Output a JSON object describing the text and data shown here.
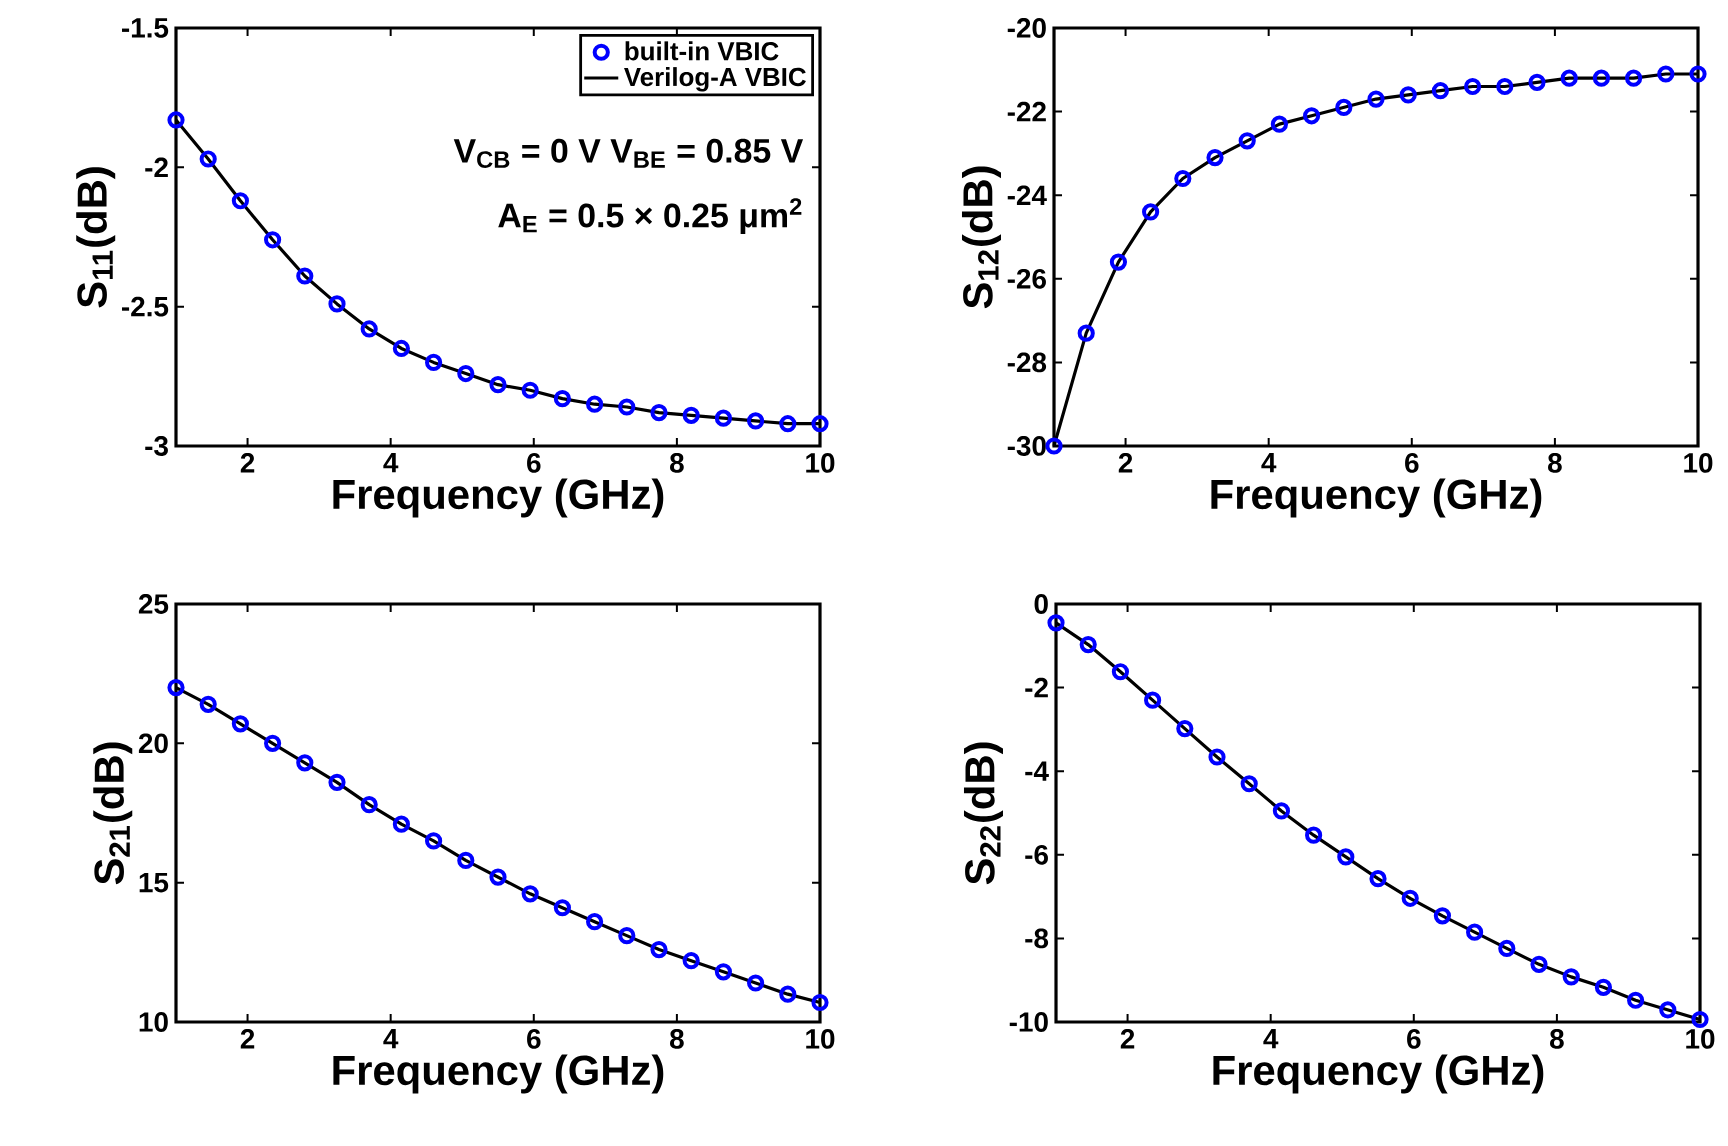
{
  "chart_data": [
    {
      "type": "line",
      "xlabel": "Frequency (GHz)",
      "ylabel": "S$_{11}$(dB)",
      "x": [
        1,
        1.45,
        1.9,
        2.35,
        2.8,
        3.25,
        3.7,
        4.15,
        4.6,
        5.05,
        5.5,
        5.95,
        6.4,
        6.85,
        7.3,
        7.75,
        8.2,
        8.65,
        9.1,
        9.55,
        10
      ],
      "xlim": [
        1,
        10
      ],
      "xticks": [
        2,
        4,
        6,
        8,
        10
      ],
      "ylim": [
        -3,
        -1.5
      ],
      "yticks": [
        -3,
        -2.5,
        -2,
        -1.5
      ],
      "legend": "top right",
      "grid": false,
      "annotations": [
        "V$_{CB}$ = 0 V  V$_{BE}$ = 0.85 V",
        "A$_{E}$ = 0.5 × 0.25 μm$^{2}$"
      ],
      "series": [
        {
          "name": "built-in VBIC",
          "type": "scatter",
          "marker": "circle",
          "color": "#0000ff",
          "values": [
            -1.83,
            -1.97,
            -2.12,
            -2.26,
            -2.39,
            -2.49,
            -2.58,
            -2.65,
            -2.7,
            -2.74,
            -2.78,
            -2.8,
            -2.83,
            -2.85,
            -2.86,
            -2.88,
            -2.89,
            -2.9,
            -2.91,
            -2.92,
            -2.92
          ]
        },
        {
          "name": "Verilog-A  VBIC",
          "type": "line",
          "marker": "none",
          "color": "#000000",
          "values": [
            -1.83,
            -1.97,
            -2.12,
            -2.26,
            -2.39,
            -2.49,
            -2.58,
            -2.65,
            -2.7,
            -2.74,
            -2.78,
            -2.8,
            -2.83,
            -2.85,
            -2.86,
            -2.88,
            -2.89,
            -2.9,
            -2.91,
            -2.92,
            -2.92
          ]
        }
      ]
    },
    {
      "type": "line",
      "xlabel": "Frequency (GHz)",
      "ylabel": "S$_{12}$(dB)",
      "x": [
        1,
        1.45,
        1.9,
        2.35,
        2.8,
        3.25,
        3.7,
        4.15,
        4.6,
        5.05,
        5.5,
        5.95,
        6.4,
        6.85,
        7.3,
        7.75,
        8.2,
        8.65,
        9.1,
        9.55,
        10
      ],
      "xlim": [
        1,
        10
      ],
      "xticks": [
        2,
        4,
        6,
        8,
        10
      ],
      "ylim": [
        -30,
        -20
      ],
      "yticks": [
        -30,
        -28,
        -26,
        -24,
        -22,
        -20
      ],
      "grid": false,
      "series": [
        {
          "type": "scatter",
          "marker": "circle",
          "color": "#0000ff",
          "values": [
            -30,
            -27.3,
            -25.6,
            -24.4,
            -23.6,
            -23.1,
            -22.7,
            -22.3,
            -22.1,
            -21.9,
            -21.7,
            -21.6,
            -21.5,
            -21.4,
            -21.4,
            -21.3,
            -21.2,
            -21.2,
            -21.2,
            -21.1,
            -21.1
          ]
        },
        {
          "type": "line",
          "marker": "none",
          "color": "#000000",
          "values": [
            -30,
            -27.3,
            -25.6,
            -24.4,
            -23.6,
            -23.1,
            -22.7,
            -22.3,
            -22.1,
            -21.9,
            -21.7,
            -21.6,
            -21.5,
            -21.4,
            -21.4,
            -21.3,
            -21.2,
            -21.2,
            -21.2,
            -21.1,
            -21.1
          ]
        }
      ]
    },
    {
      "type": "line",
      "xlabel": "Frequency (GHz)",
      "ylabel": "S$_{21}$(dB)",
      "x": [
        1,
        1.45,
        1.9,
        2.35,
        2.8,
        3.25,
        3.7,
        4.15,
        4.6,
        5.05,
        5.5,
        5.95,
        6.4,
        6.85,
        7.3,
        7.75,
        8.2,
        8.65,
        9.1,
        9.55,
        10
      ],
      "xlim": [
        1,
        10
      ],
      "xticks": [
        2,
        4,
        6,
        8,
        10
      ],
      "ylim": [
        10,
        25
      ],
      "yticks": [
        10,
        15,
        20,
        25
      ],
      "grid": false,
      "series": [
        {
          "type": "scatter",
          "marker": "circle",
          "color": "#0000ff",
          "values": [
            22.0,
            21.4,
            20.7,
            20.0,
            19.3,
            18.6,
            17.8,
            17.1,
            16.5,
            15.8,
            15.2,
            14.6,
            14.1,
            13.6,
            13.1,
            12.6,
            12.2,
            11.8,
            11.4,
            11.0,
            10.7
          ]
        },
        {
          "type": "line",
          "marker": "none",
          "color": "#000000",
          "values": [
            22.0,
            21.4,
            20.7,
            20.0,
            19.3,
            18.6,
            17.8,
            17.1,
            16.5,
            15.8,
            15.2,
            14.6,
            14.1,
            13.6,
            13.1,
            12.6,
            12.2,
            11.8,
            11.4,
            11.0,
            10.7
          ]
        }
      ]
    },
    {
      "type": "line",
      "xlabel": "Frequency (GHz)",
      "ylabel": "S$_{22}$(dB)",
      "x": [
        1,
        1.45,
        1.9,
        2.35,
        2.8,
        3.25,
        3.7,
        4.15,
        4.6,
        5.05,
        5.5,
        5.95,
        6.4,
        6.85,
        7.3,
        7.75,
        8.2,
        8.65,
        9.1,
        9.55,
        10
      ],
      "xlim": [
        1,
        10
      ],
      "xticks": [
        2,
        4,
        6,
        8,
        10
      ],
      "ylim": [
        -10,
        0
      ],
      "yticks": [
        -10,
        -8,
        -6,
        -4,
        -2,
        0
      ],
      "grid": false,
      "series": [
        {
          "type": "scatter",
          "marker": "circle",
          "color": "#0000ff",
          "values": [
            -0.45,
            -0.97,
            -1.62,
            -2.3,
            -2.98,
            -3.66,
            -4.3,
            -4.95,
            -5.53,
            -6.05,
            -6.57,
            -7.04,
            -7.46,
            -7.85,
            -8.24,
            -8.62,
            -8.92,
            -9.17,
            -9.48,
            -9.71,
            -9.94
          ]
        },
        {
          "type": "line",
          "marker": "none",
          "color": "#000000",
          "values": [
            -0.45,
            -0.97,
            -1.62,
            -2.3,
            -2.98,
            -3.66,
            -4.3,
            -4.95,
            -5.53,
            -6.05,
            -6.57,
            -7.04,
            -7.46,
            -7.85,
            -8.24,
            -8.62,
            -8.92,
            -9.17,
            -9.48,
            -9.71,
            -9.94
          ]
        }
      ]
    }
  ]
}
